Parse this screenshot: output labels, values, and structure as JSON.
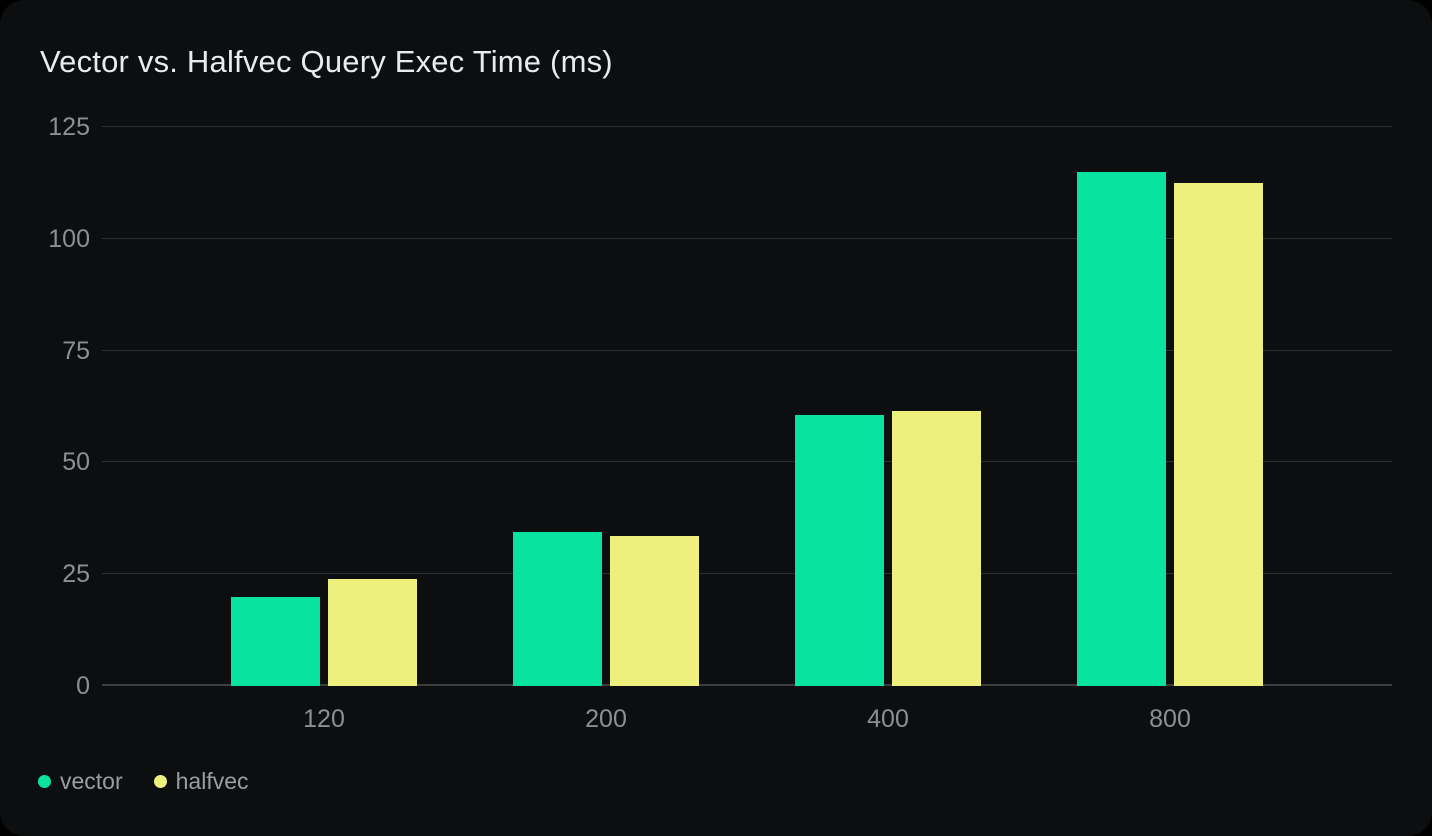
{
  "chart_data": {
    "type": "bar",
    "title": "Vector vs. Halfvec Query Exec Time (ms)",
    "categories": [
      "120",
      "200",
      "400",
      "800"
    ],
    "series": [
      {
        "name": "vector",
        "color": "#08e3a0",
        "values": [
          20,
          34.5,
          60.5,
          115
        ]
      },
      {
        "name": "halfvec",
        "color": "#eef07d",
        "values": [
          24,
          33.5,
          61.5,
          112.5
        ]
      }
    ],
    "xlabel": "",
    "ylabel": "",
    "ylim": [
      0,
      125
    ],
    "yticks": [
      0,
      25,
      50,
      75,
      100,
      125
    ],
    "grid": true,
    "legend_position": "bottom-left"
  },
  "colors": {
    "page_background": "#000000",
    "card_background": "#0d0e0f",
    "gridline": "#2c2d2e",
    "zero_axis": "#3c3d3e",
    "title_text": "#e9ebee",
    "axis_text": "#8b8f96",
    "legend_text": "#9a9ea4",
    "series_vector": "#08e3a0",
    "series_halfvec": "#eef07d"
  }
}
